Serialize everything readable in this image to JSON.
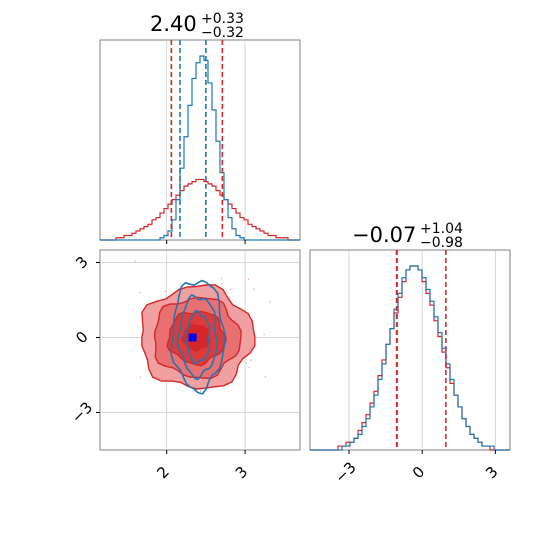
{
  "chart_data": {
    "type": "corner",
    "title": "",
    "parameters": [
      {
        "title_main": "2.40",
        "title_upper": "+0.33",
        "title_lower": "−0.32",
        "xlim": [
          1.15,
          3.7
        ],
        "ticks": [
          2,
          3
        ],
        "tick_labels": [
          "2",
          "3"
        ],
        "grid": true
      },
      {
        "title_main": "−0.07",
        "title_upper": "+1.04",
        "title_lower": "−0.98",
        "xlim": [
          -4.6,
          3.6
        ],
        "ticks": [
          -3,
          0,
          3
        ],
        "tick_labels": [
          "−3",
          "0",
          "3"
        ],
        "grid": true
      }
    ],
    "joint": {
      "x_param": 0,
      "y_param": 1,
      "ylim": [
        -4.5,
        3.5
      ],
      "yticks": [
        -3,
        0,
        3
      ],
      "ytick_labels": [
        "−3",
        "0",
        "3"
      ],
      "truth_marker": {
        "x": 2.33,
        "y": 0.0,
        "color": "#0000ff"
      },
      "contours": [
        {
          "series": "red",
          "fill": true,
          "levels": [
            {
              "cx": 2.38,
              "cy": 0.0,
              "rx": 0.72,
              "ry": 2.05,
              "fill": "#f0a0a0"
            },
            {
              "cx": 2.38,
              "cy": 0.0,
              "rx": 0.55,
              "ry": 1.6,
              "fill": "#e87070"
            },
            {
              "cx": 2.38,
              "cy": 0.0,
              "rx": 0.36,
              "ry": 1.05,
              "fill": "#dd3a3a"
            },
            {
              "cx": 2.38,
              "cy": 0.0,
              "rx": 0.17,
              "ry": 0.5,
              "fill": "#d62728"
            }
          ]
        },
        {
          "series": "blue",
          "fill": false,
          "levels": [
            {
              "cx": 2.4,
              "cy": 0.1,
              "rx": 0.33,
              "ry": 2.2
            },
            {
              "cx": 2.4,
              "cy": 0.05,
              "rx": 0.24,
              "ry": 1.6
            },
            {
              "cx": 2.4,
              "cy": 0.0,
              "rx": 0.15,
              "ry": 1.0
            }
          ]
        }
      ]
    },
    "series": [
      {
        "name": "",
        "color": "#1f77b4"
      },
      {
        "name": "",
        "color": "#d62728"
      }
    ],
    "marginals": [
      {
        "param": 0,
        "bins": [
          1.15,
          3.7,
          50
        ],
        "blue_values": [
          0,
          0,
          0,
          0,
          0,
          0,
          0,
          0,
          0,
          0,
          0,
          0,
          0,
          0,
          0,
          1,
          2,
          4,
          9,
          18,
          32,
          46,
          60,
          72,
          79,
          82,
          80,
          70,
          58,
          44,
          30,
          18,
          10,
          5,
          2,
          1,
          0,
          0,
          0,
          0,
          0,
          0,
          0,
          0,
          0,
          0,
          0,
          0,
          0,
          0
        ],
        "red_values": [
          0,
          0,
          0,
          0,
          1,
          1,
          2,
          2,
          3,
          4,
          5,
          6,
          7,
          9,
          10,
          12,
          14,
          16,
          18,
          20,
          22,
          24,
          25,
          26,
          27,
          27,
          26,
          25,
          24,
          22,
          20,
          18,
          16,
          14,
          12,
          10,
          9,
          7,
          6,
          5,
          4,
          3,
          2,
          2,
          1,
          1,
          1,
          0,
          0,
          0
        ],
        "quantile_lines": [
          {
            "value": 2.06,
            "color": "#d62728"
          },
          {
            "value": 2.17,
            "color": "#1f77b4"
          },
          {
            "value": 2.5,
            "color": "#1f77b4"
          },
          {
            "value": 2.71,
            "color": "#d62728"
          }
        ]
      },
      {
        "param": 1,
        "bins": [
          -4.6,
          3.6,
          50
        ],
        "blue_values": [
          0,
          0,
          0,
          0,
          0,
          0,
          0,
          0,
          1,
          1,
          2,
          3,
          4,
          6,
          8,
          11,
          14,
          18,
          22,
          27,
          31,
          36,
          40,
          44,
          46,
          47,
          47,
          46,
          44,
          41,
          38,
          34,
          30,
          26,
          22,
          18,
          14,
          11,
          8,
          6,
          4,
          3,
          2,
          1,
          1,
          1,
          0,
          0,
          0,
          0
        ],
        "red_values": [
          0,
          0,
          0,
          0,
          0,
          0,
          0,
          1,
          1,
          2,
          2,
          3,
          5,
          7,
          9,
          12,
          15,
          19,
          23,
          27,
          31,
          35,
          39,
          43,
          46,
          47,
          47,
          46,
          43,
          40,
          37,
          33,
          29,
          25,
          21,
          17,
          14,
          11,
          8,
          6,
          4,
          3,
          2,
          1,
          1,
          0,
          0,
          0,
          0,
          0
        ],
        "quantile_lines": [
          {
            "value": -1.03,
            "color": "#1f77b4"
          },
          {
            "value": -1.05,
            "color": "#d62728"
          },
          {
            "value": 0.97,
            "color": "#d62728"
          }
        ]
      }
    ]
  }
}
